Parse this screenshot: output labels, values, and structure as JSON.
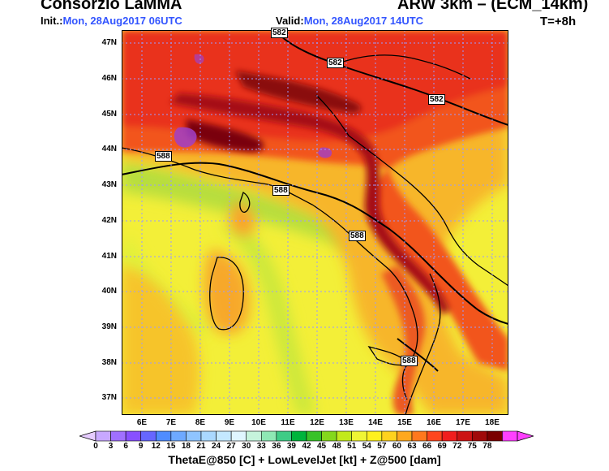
{
  "header": {
    "org": "Consorzio LaMMA",
    "model": "ARW 3km – (ECM_14km)",
    "init_label": "Init.:",
    "init_value": "Mon, 28Aug2017 06UTC",
    "valid_label": "Valid:",
    "valid_value": "Mon, 28Aug2017 14UTC",
    "step": "T=+8h"
  },
  "map": {
    "lat_labels": [
      "47N",
      "46N",
      "45N",
      "44N",
      "43N",
      "42N",
      "41N",
      "40N",
      "39N",
      "38N",
      "37N"
    ],
    "lon_labels": [
      "6E",
      "7E",
      "8E",
      "9E",
      "10E",
      "11E",
      "12E",
      "13E",
      "14E",
      "15E",
      "16E",
      "17E",
      "18E"
    ],
    "contour_labels": [
      "582",
      "582",
      "582",
      "588",
      "588",
      "588",
      "588"
    ]
  },
  "colorbar": {
    "ticks": [
      "0",
      "3",
      "6",
      "9",
      "12",
      "15",
      "18",
      "21",
      "24",
      "27",
      "30",
      "33",
      "36",
      "39",
      "42",
      "45",
      "48",
      "51",
      "54",
      "57",
      "60",
      "63",
      "66",
      "69",
      "72",
      "75",
      "78"
    ],
    "colors": [
      "#c8a8ff",
      "#a070ff",
      "#8850ff",
      "#6666ff",
      "#4f8cff",
      "#6ea9ff",
      "#8fc4ff",
      "#aad8ff",
      "#c4e8ff",
      "#e0f6ff",
      "#c6f4dc",
      "#8ee8b4",
      "#3fcc86",
      "#00b43c",
      "#38c228",
      "#84d81c",
      "#c2ea1c",
      "#f0f534",
      "#fff01e",
      "#ffd21e",
      "#ffa81e",
      "#ff781e",
      "#ff461e",
      "#f01e1e",
      "#cc1414",
      "#a00a0a",
      "#7a0000",
      "#ff40ff"
    ],
    "caption": "ThetaE@850 [C] + LowLevelJet [kt] + Z@500 [dam]"
  }
}
